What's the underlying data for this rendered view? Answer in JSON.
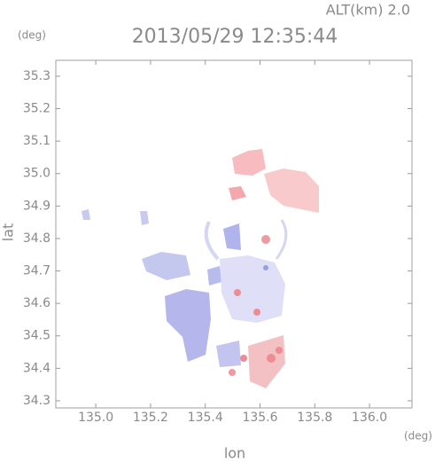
{
  "chart_data": {
    "type": "map",
    "title": "2013/05/29 12:35:44",
    "annotation": "ALT(km) 2.0",
    "x_label": "lon",
    "y_label": "lat",
    "x_unit": "(deg)",
    "y_unit": "(deg)",
    "xlim": [
      134.854,
      136.155
    ],
    "ylim": [
      34.278,
      35.349
    ],
    "xticks": [
      {
        "value": 135.0,
        "label": "135.0"
      },
      135.2,
      135.4,
      135.6,
      135.8,
      {
        "value": 136.0,
        "label": "136.0"
      }
    ],
    "yticks": [
      34.3,
      34.4,
      34.5,
      34.6,
      34.7,
      34.8,
      34.9,
      {
        "value": 35.0,
        "label": "35.0"
      },
      35.1,
      35.2,
      35.3
    ]
  }
}
